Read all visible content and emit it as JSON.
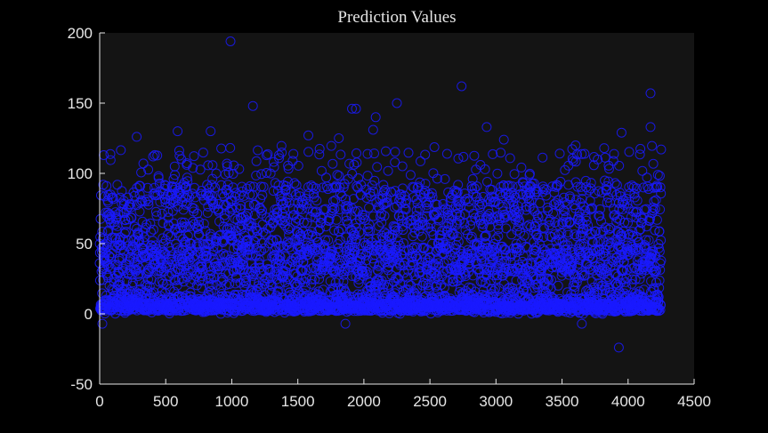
{
  "chart_data": {
    "type": "scatter",
    "title": "Prediction Values",
    "xlabel": "",
    "ylabel": "",
    "xlim": [
      0,
      4500
    ],
    "ylim": [
      -50,
      200
    ],
    "xticks": [
      "0",
      "500",
      "1000",
      "1500",
      "2000",
      "2500",
      "3000",
      "3500",
      "4000",
      "4500"
    ],
    "yticks": [
      "-50",
      "0",
      "50",
      "100",
      "150",
      "200"
    ],
    "grid": false,
    "marker": "open-circle",
    "colors": {
      "marker": "#1a1aff",
      "plot_bg": "#141414",
      "figure_bg": "#000000",
      "axis": "#e6e6e6"
    },
    "series": [
      {
        "n_points": 4250,
        "x_range": [
          0,
          4250
        ],
        "dense_bands": [
          [
            0,
            30
          ],
          [
            50,
            90
          ]
        ],
        "outliers": [
          {
            "x": 990,
            "y": 194
          },
          {
            "x": 1160,
            "y": 148
          },
          {
            "x": 1910,
            "y": 146
          },
          {
            "x": 1940,
            "y": 146
          },
          {
            "x": 2090,
            "y": 140
          },
          {
            "x": 2070,
            "y": 131
          },
          {
            "x": 2250,
            "y": 150
          },
          {
            "x": 2740,
            "y": 162
          },
          {
            "x": 2930,
            "y": 133
          },
          {
            "x": 3060,
            "y": 124
          },
          {
            "x": 4170,
            "y": 157
          },
          {
            "x": 4170,
            "y": 133
          },
          {
            "x": 3950,
            "y": 129
          },
          {
            "x": 840,
            "y": 130
          },
          {
            "x": 590,
            "y": 130
          },
          {
            "x": 280,
            "y": 126
          },
          {
            "x": 1580,
            "y": 127
          },
          {
            "x": 1810,
            "y": 125
          },
          {
            "x": 3930,
            "y": -24
          },
          {
            "x": 20,
            "y": -7
          },
          {
            "x": 1860,
            "y": -7
          },
          {
            "x": 3650,
            "y": -7
          },
          {
            "x": 30,
            "y": 113
          },
          {
            "x": 4250,
            "y": 117
          }
        ]
      }
    ]
  }
}
